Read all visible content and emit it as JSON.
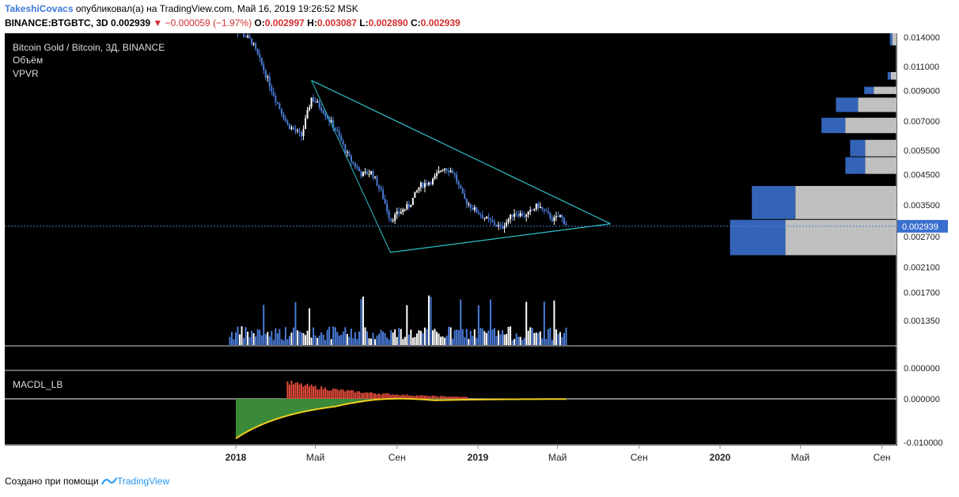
{
  "header": {
    "user": "TakeshiCovacs",
    "published_text": "опубликовал(а) на TradingView.com, Май 16, 2019 19:26:52 MSK",
    "symbol": "BINANCE:BTGBTC, 3D",
    "last": "0.002939",
    "change": "−0.000059 (−1.97%)",
    "o_label": "O:",
    "o": "0.002997",
    "h_label": "H:",
    "h": "0.003087",
    "l_label": "L:",
    "l": "0.002890",
    "c_label": "C:",
    "c": "0.002939"
  },
  "legend": {
    "title": "Bitcoin Gold / Bitcoin, 3Д, BINANCE",
    "volume": "Объём",
    "vpvr": "VPVR",
    "macd": "MACDL_LB"
  },
  "footer": {
    "text": "Создано при помощи",
    "brand": "TradingView"
  },
  "colors": {
    "background": "#000000",
    "candle_up": "#ffffff",
    "candle_down": "#4a7bd8",
    "triangle": "#2fc1c9",
    "vpvr_blue": "#3464b8",
    "vpvr_gray": "#c0c0c0",
    "macd_red": "#e04a3a",
    "macd_green": "#3a8a3a",
    "macd_line": "#f0d020"
  },
  "chart_data": {
    "type": "candlestick",
    "y_scale": "log",
    "price_ticks": [
      "0.014000",
      "0.011000",
      "0.009000",
      "0.007000",
      "0.005500",
      "0.004500",
      "0.003500",
      "0.002700",
      "0.002100",
      "0.001700",
      "0.001350"
    ],
    "last_price_label": "0.002939",
    "time_labels": [
      "2018",
      "Май",
      "Сен",
      "2019",
      "Май",
      "Сен",
      "2020",
      "Май",
      "Сен"
    ],
    "macd_ticks": [
      "0.000000",
      "-0.010000"
    ],
    "volume_zero_tick": "0.000000",
    "price_path": [
      [
        "2017-12-20",
        0.0155
      ],
      [
        "2018-01-10",
        0.0145
      ],
      [
        "2018-01-25",
        0.0135
      ],
      [
        "2018-02-10",
        0.011
      ],
      [
        "2018-03-01",
        0.0085
      ],
      [
        "2018-03-20",
        0.0068
      ],
      [
        "2018-04-10",
        0.0062
      ],
      [
        "2018-04-25",
        0.0085
      ],
      [
        "2018-05-10",
        0.0078
      ],
      [
        "2018-06-01",
        0.0065
      ],
      [
        "2018-06-20",
        0.0052
      ],
      [
        "2018-07-10",
        0.0045
      ],
      [
        "2018-07-25",
        0.0046
      ],
      [
        "2018-08-10",
        0.0038
      ],
      [
        "2018-08-22",
        0.0031
      ],
      [
        "2018-09-05",
        0.0033
      ],
      [
        "2018-09-20",
        0.0035
      ],
      [
        "2018-10-05",
        0.0041
      ],
      [
        "2018-10-25",
        0.0043
      ],
      [
        "2018-11-10",
        0.0048
      ],
      [
        "2018-11-25",
        0.0046
      ],
      [
        "2018-12-10",
        0.0037
      ],
      [
        "2018-12-25",
        0.0034
      ],
      [
        "2019-01-15",
        0.0031
      ],
      [
        "2019-02-05",
        0.0029
      ],
      [
        "2019-02-25",
        0.0033
      ],
      [
        "2019-03-15",
        0.0032
      ],
      [
        "2019-04-01",
        0.0035
      ],
      [
        "2019-04-12",
        0.0033
      ],
      [
        "2019-04-25",
        0.0031
      ],
      [
        "2019-05-05",
        0.0032
      ],
      [
        "2019-05-16",
        0.002939
      ]
    ],
    "triangle": {
      "upper": [
        [
          "2018-04-25",
          0.0098
        ],
        [
          "2019-07-20",
          0.003
        ]
      ],
      "lower": [
        [
          "2018-08-22",
          0.00237
        ],
        [
          "2019-07-20",
          0.003
        ]
      ]
    },
    "vpvr_bins": [
      {
        "low": 0.0023,
        "high": 0.0031,
        "buy": 0.7,
        "sell": 0.78
      },
      {
        "low": 0.0031,
        "high": 0.0041,
        "buy": 0.55,
        "sell": 0.71
      },
      {
        "low": 0.0045,
        "high": 0.0052,
        "buy": 0.25,
        "sell": 0.22
      },
      {
        "low": 0.0052,
        "high": 0.006,
        "buy": 0.19,
        "sell": 0.22
      },
      {
        "low": 0.0063,
        "high": 0.0072,
        "buy": 0.3,
        "sell": 0.36
      },
      {
        "low": 0.0075,
        "high": 0.0085,
        "buy": 0.28,
        "sell": 0.27
      },
      {
        "low": 0.0087,
        "high": 0.0093,
        "buy": 0.12,
        "sell": 0.16
      },
      {
        "low": 0.0098,
        "high": 0.0105,
        "buy": 0.04,
        "sell": 0.04
      },
      {
        "low": 0.013,
        "high": 0.015,
        "buy": 0.03,
        "sell": 0.03
      }
    ]
  }
}
